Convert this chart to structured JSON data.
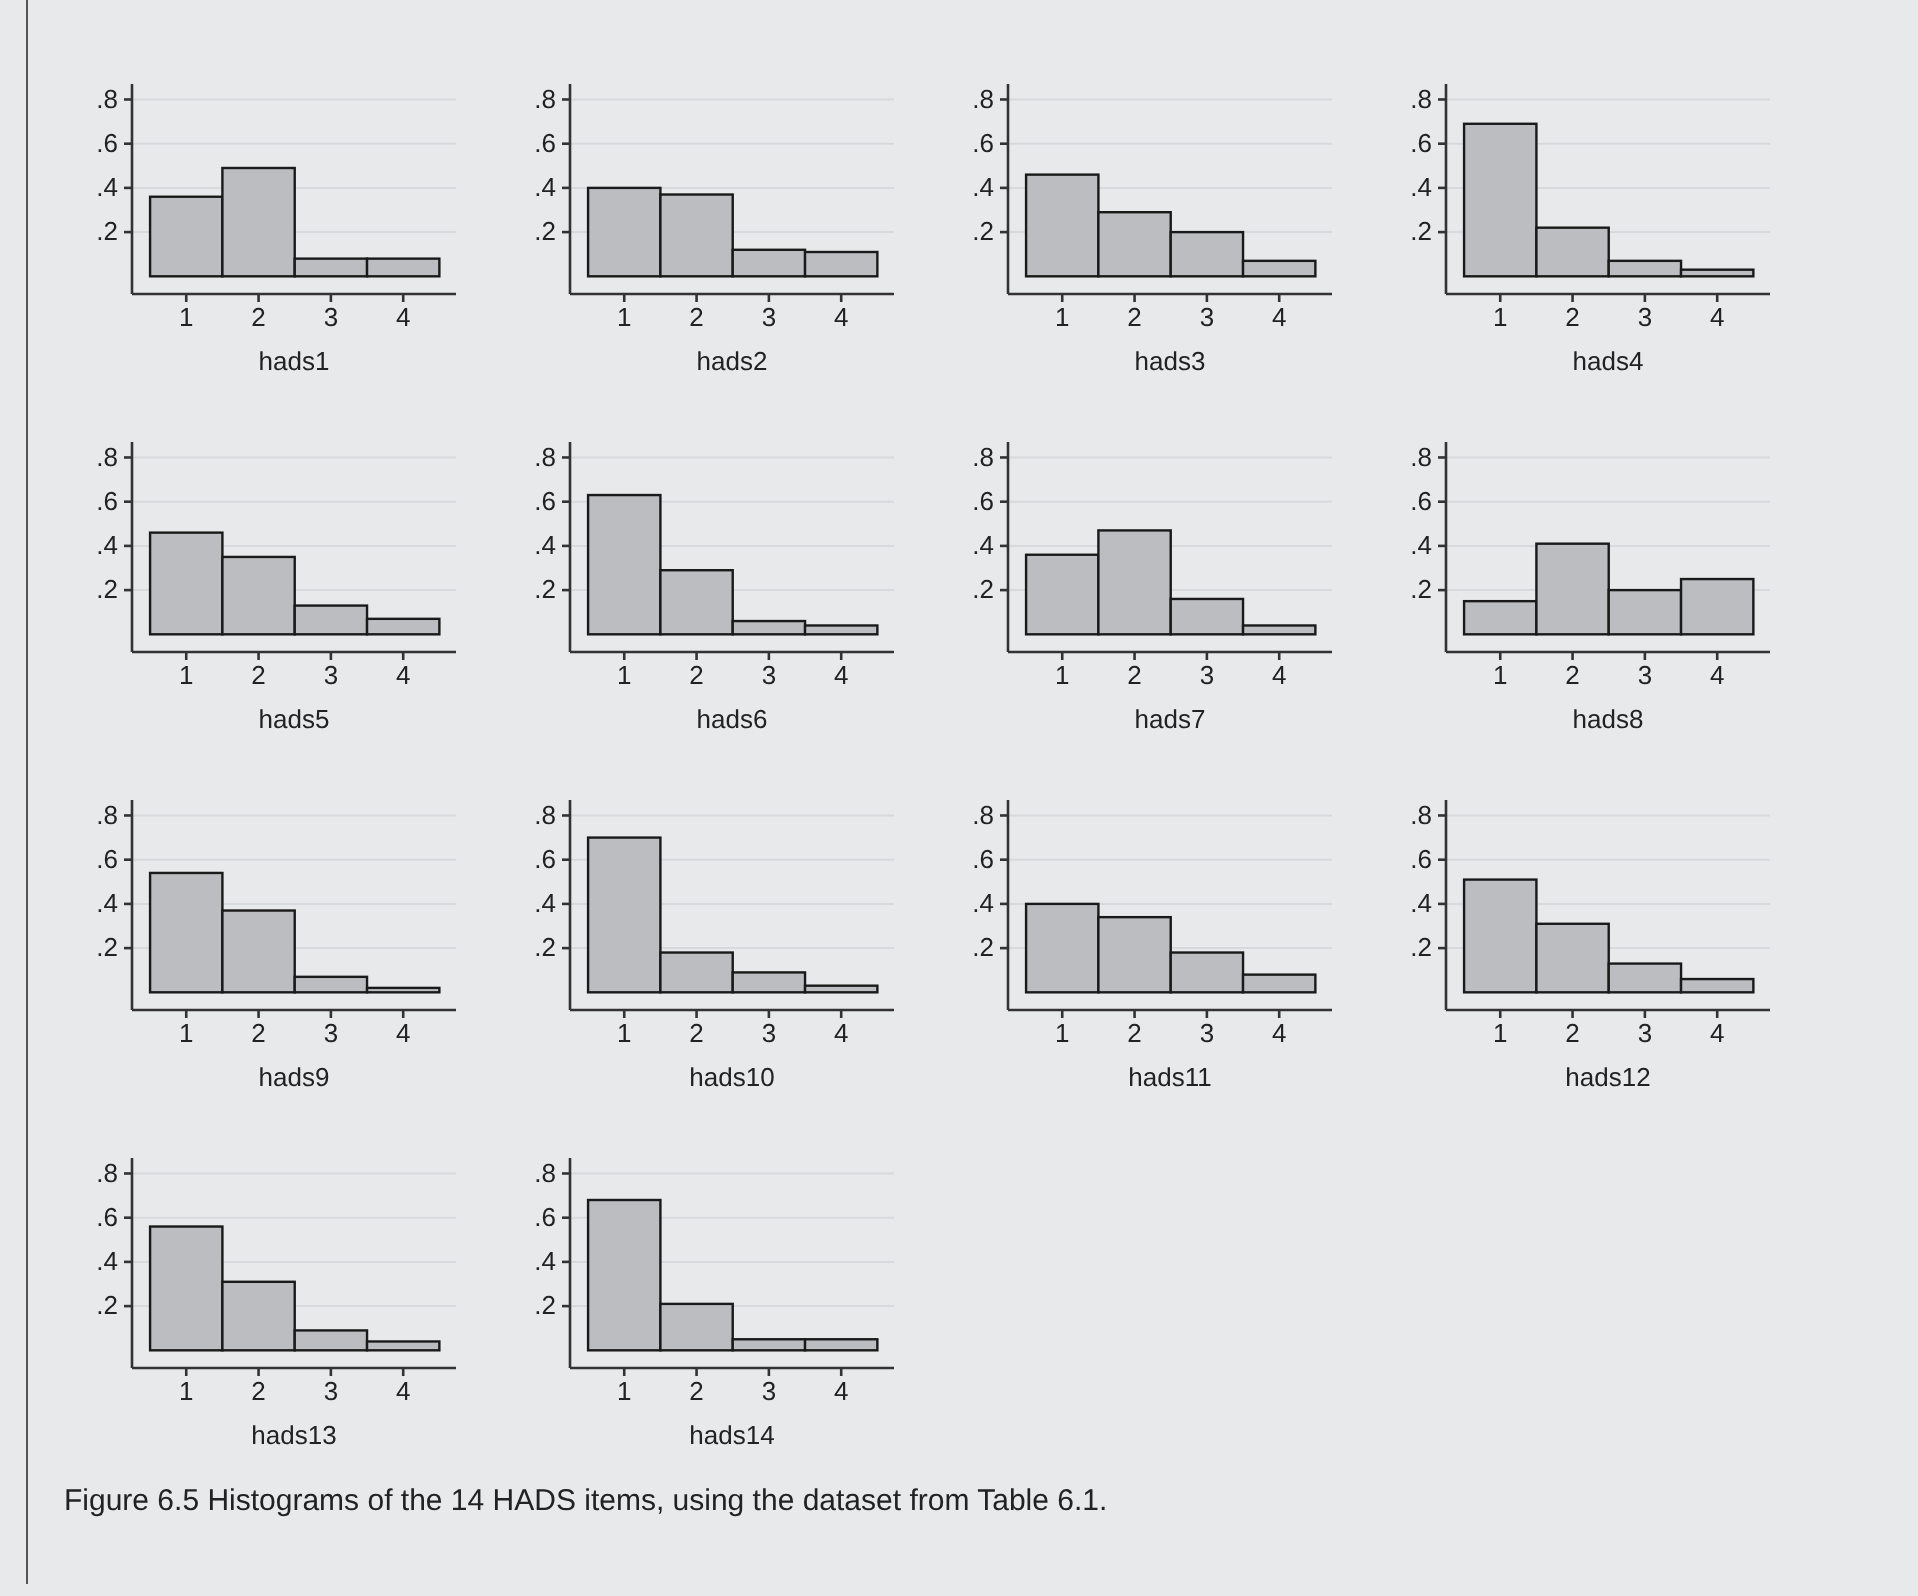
{
  "chart_data": [
    {
      "type": "histogram",
      "xlabel": "hads1",
      "bins": [
        0.5,
        1.5,
        2.5,
        3.5,
        4.5
      ],
      "values": [
        0.36,
        0.49,
        0.08,
        0.08
      ],
      "color": "#bcbdc1",
      "xlim": [
        0.25,
        4.73
      ],
      "ylim": [
        -0.08,
        0.87
      ],
      "xticks": [
        1,
        2,
        3,
        4
      ],
      "yticks": [
        {
          "value": 0.2,
          "label": ".2"
        },
        {
          "value": 0.4,
          "label": ".4"
        },
        {
          "value": 0.6,
          "label": ".6"
        },
        {
          "value": 0.8,
          "label": ".8"
        }
      ],
      "grid": "y"
    },
    {
      "type": "histogram",
      "xlabel": "hads2",
      "bins": [
        0.5,
        1.5,
        2.5,
        3.5,
        4.5
      ],
      "values": [
        0.4,
        0.37,
        0.12,
        0.11
      ],
      "color": "#bcbdc1",
      "xlim": [
        0.25,
        4.73
      ],
      "ylim": [
        -0.08,
        0.87
      ],
      "xticks": [
        1,
        2,
        3,
        4
      ],
      "yticks": [
        {
          "value": 0.2,
          "label": ".2"
        },
        {
          "value": 0.4,
          "label": ".4"
        },
        {
          "value": 0.6,
          "label": ".6"
        },
        {
          "value": 0.8,
          "label": ".8"
        }
      ],
      "grid": "y"
    },
    {
      "type": "histogram",
      "xlabel": "hads3",
      "bins": [
        0.5,
        1.5,
        2.5,
        3.5,
        4.5
      ],
      "values": [
        0.46,
        0.29,
        0.2,
        0.07
      ],
      "color": "#bcbdc1",
      "xlim": [
        0.25,
        4.73
      ],
      "ylim": [
        -0.08,
        0.87
      ],
      "xticks": [
        1,
        2,
        3,
        4
      ],
      "yticks": [
        {
          "value": 0.2,
          "label": ".2"
        },
        {
          "value": 0.4,
          "label": ".4"
        },
        {
          "value": 0.6,
          "label": ".6"
        },
        {
          "value": 0.8,
          "label": ".8"
        }
      ],
      "grid": "y"
    },
    {
      "type": "histogram",
      "xlabel": "hads4",
      "bins": [
        0.5,
        1.5,
        2.5,
        3.5,
        4.5
      ],
      "values": [
        0.69,
        0.22,
        0.07,
        0.03
      ],
      "color": "#bcbdc1",
      "xlim": [
        0.25,
        4.73
      ],
      "ylim": [
        -0.08,
        0.87
      ],
      "xticks": [
        1,
        2,
        3,
        4
      ],
      "yticks": [
        {
          "value": 0.2,
          "label": ".2"
        },
        {
          "value": 0.4,
          "label": ".4"
        },
        {
          "value": 0.6,
          "label": ".6"
        },
        {
          "value": 0.8,
          "label": ".8"
        }
      ],
      "grid": "y"
    },
    {
      "type": "histogram",
      "xlabel": "hads5",
      "bins": [
        0.5,
        1.5,
        2.5,
        3.5,
        4.5
      ],
      "values": [
        0.46,
        0.35,
        0.13,
        0.07
      ],
      "color": "#bcbdc1",
      "xlim": [
        0.25,
        4.73
      ],
      "ylim": [
        -0.08,
        0.87
      ],
      "xticks": [
        1,
        2,
        3,
        4
      ],
      "yticks": [
        {
          "value": 0.2,
          "label": ".2"
        },
        {
          "value": 0.4,
          "label": ".4"
        },
        {
          "value": 0.6,
          "label": ".6"
        },
        {
          "value": 0.8,
          "label": ".8"
        }
      ],
      "grid": "y"
    },
    {
      "type": "histogram",
      "xlabel": "hads6",
      "bins": [
        0.5,
        1.5,
        2.5,
        3.5,
        4.5
      ],
      "values": [
        0.63,
        0.29,
        0.06,
        0.04
      ],
      "color": "#bcbdc1",
      "xlim": [
        0.25,
        4.73
      ],
      "ylim": [
        -0.08,
        0.87
      ],
      "xticks": [
        1,
        2,
        3,
        4
      ],
      "yticks": [
        {
          "value": 0.2,
          "label": ".2"
        },
        {
          "value": 0.4,
          "label": ".4"
        },
        {
          "value": 0.6,
          "label": ".6"
        },
        {
          "value": 0.8,
          "label": ".8"
        }
      ],
      "grid": "y"
    },
    {
      "type": "histogram",
      "xlabel": "hads7",
      "bins": [
        0.5,
        1.5,
        2.5,
        3.5,
        4.5
      ],
      "values": [
        0.36,
        0.47,
        0.16,
        0.04
      ],
      "color": "#bcbdc1",
      "xlim": [
        0.25,
        4.73
      ],
      "ylim": [
        -0.08,
        0.87
      ],
      "xticks": [
        1,
        2,
        3,
        4
      ],
      "yticks": [
        {
          "value": 0.2,
          "label": ".2"
        },
        {
          "value": 0.4,
          "label": ".4"
        },
        {
          "value": 0.6,
          "label": ".6"
        },
        {
          "value": 0.8,
          "label": ".8"
        }
      ],
      "grid": "y"
    },
    {
      "type": "histogram",
      "xlabel": "hads8",
      "bins": [
        0.5,
        1.5,
        2.5,
        3.5,
        4.5
      ],
      "values": [
        0.15,
        0.41,
        0.2,
        0.25
      ],
      "color": "#bcbdc1",
      "xlim": [
        0.25,
        4.73
      ],
      "ylim": [
        -0.08,
        0.87
      ],
      "xticks": [
        1,
        2,
        3,
        4
      ],
      "yticks": [
        {
          "value": 0.2,
          "label": ".2"
        },
        {
          "value": 0.4,
          "label": ".4"
        },
        {
          "value": 0.6,
          "label": ".6"
        },
        {
          "value": 0.8,
          "label": ".8"
        }
      ],
      "grid": "y"
    },
    {
      "type": "histogram",
      "xlabel": "hads9",
      "bins": [
        0.5,
        1.5,
        2.5,
        3.5,
        4.5
      ],
      "values": [
        0.54,
        0.37,
        0.07,
        0.02
      ],
      "color": "#bcbdc1",
      "xlim": [
        0.25,
        4.73
      ],
      "ylim": [
        -0.08,
        0.87
      ],
      "xticks": [
        1,
        2,
        3,
        4
      ],
      "yticks": [
        {
          "value": 0.2,
          "label": ".2"
        },
        {
          "value": 0.4,
          "label": ".4"
        },
        {
          "value": 0.6,
          "label": ".6"
        },
        {
          "value": 0.8,
          "label": ".8"
        }
      ],
      "grid": "y"
    },
    {
      "type": "histogram",
      "xlabel": "hads10",
      "bins": [
        0.5,
        1.5,
        2.5,
        3.5,
        4.5
      ],
      "values": [
        0.7,
        0.18,
        0.09,
        0.03
      ],
      "color": "#bcbdc1",
      "xlim": [
        0.25,
        4.73
      ],
      "ylim": [
        -0.08,
        0.87
      ],
      "xticks": [
        1,
        2,
        3,
        4
      ],
      "yticks": [
        {
          "value": 0.2,
          "label": ".2"
        },
        {
          "value": 0.4,
          "label": ".4"
        },
        {
          "value": 0.6,
          "label": ".6"
        },
        {
          "value": 0.8,
          "label": ".8"
        }
      ],
      "grid": "y"
    },
    {
      "type": "histogram",
      "xlabel": "hads11",
      "bins": [
        0.5,
        1.5,
        2.5,
        3.5,
        4.5
      ],
      "values": [
        0.4,
        0.34,
        0.18,
        0.08
      ],
      "color": "#bcbdc1",
      "xlim": [
        0.25,
        4.73
      ],
      "ylim": [
        -0.08,
        0.87
      ],
      "xticks": [
        1,
        2,
        3,
        4
      ],
      "yticks": [
        {
          "value": 0.2,
          "label": ".2"
        },
        {
          "value": 0.4,
          "label": ".4"
        },
        {
          "value": 0.6,
          "label": ".6"
        },
        {
          "value": 0.8,
          "label": ".8"
        }
      ],
      "grid": "y"
    },
    {
      "type": "histogram",
      "xlabel": "hads12",
      "bins": [
        0.5,
        1.5,
        2.5,
        3.5,
        4.5
      ],
      "values": [
        0.51,
        0.31,
        0.13,
        0.06
      ],
      "color": "#bcbdc1",
      "xlim": [
        0.25,
        4.73
      ],
      "ylim": [
        -0.08,
        0.87
      ],
      "xticks": [
        1,
        2,
        3,
        4
      ],
      "yticks": [
        {
          "value": 0.2,
          "label": ".2"
        },
        {
          "value": 0.4,
          "label": ".4"
        },
        {
          "value": 0.6,
          "label": ".6"
        },
        {
          "value": 0.8,
          "label": ".8"
        }
      ],
      "grid": "y"
    },
    {
      "type": "histogram",
      "xlabel": "hads13",
      "bins": [
        0.5,
        1.5,
        2.5,
        3.5,
        4.5
      ],
      "values": [
        0.56,
        0.31,
        0.09,
        0.04
      ],
      "color": "#bcbdc1",
      "xlim": [
        0.25,
        4.73
      ],
      "ylim": [
        -0.08,
        0.87
      ],
      "xticks": [
        1,
        2,
        3,
        4
      ],
      "yticks": [
        {
          "value": 0.2,
          "label": ".2"
        },
        {
          "value": 0.4,
          "label": ".4"
        },
        {
          "value": 0.6,
          "label": ".6"
        },
        {
          "value": 0.8,
          "label": ".8"
        }
      ],
      "grid": "y"
    },
    {
      "type": "histogram",
      "xlabel": "hads14",
      "bins": [
        0.5,
        1.5,
        2.5,
        3.5,
        4.5
      ],
      "values": [
        0.68,
        0.21,
        0.05,
        0.05
      ],
      "color": "#bcbdc1",
      "xlim": [
        0.25,
        4.73
      ],
      "ylim": [
        -0.08,
        0.87
      ],
      "xticks": [
        1,
        2,
        3,
        4
      ],
      "yticks": [
        {
          "value": 0.2,
          "label": ".2"
        },
        {
          "value": 0.4,
          "label": ".4"
        },
        {
          "value": 0.6,
          "label": ".6"
        },
        {
          "value": 0.8,
          "label": ".8"
        }
      ],
      "grid": "y",
      "annotations": [
        "Figure 6.5   Histograms of the 14 HADS items, using the dataset from Table 6.1."
      ]
    }
  ]
}
